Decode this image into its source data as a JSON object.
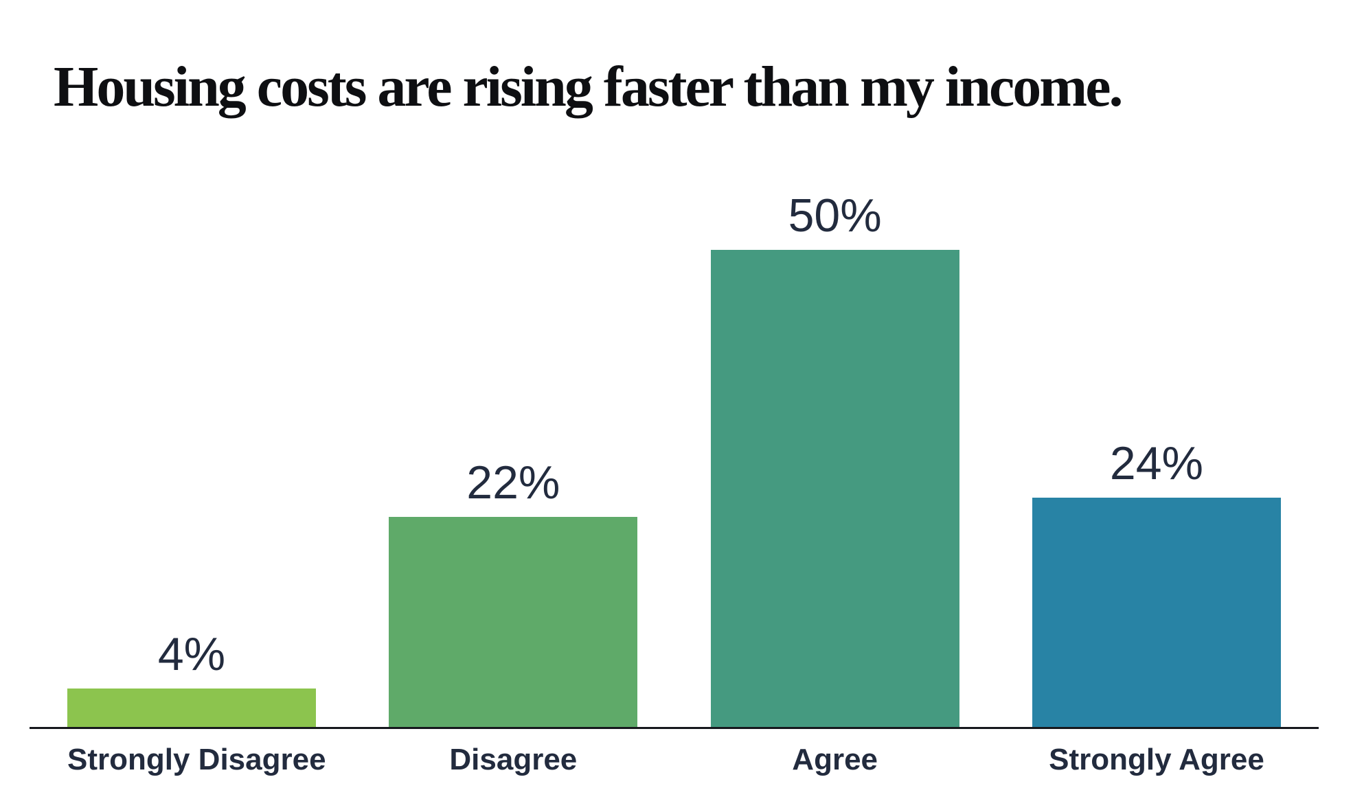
{
  "title": "Housing costs are rising faster than my income.",
  "chart_data": {
    "type": "bar",
    "title": "Housing costs are rising faster than my income.",
    "categories": [
      "Strongly Disagree",
      "Disagree",
      "Agree",
      "Strongly Agree"
    ],
    "values": [
      4,
      22,
      50,
      24
    ],
    "value_labels": [
      "4%",
      "22%",
      "50%",
      "24%"
    ],
    "bar_colors": [
      "#8CC44E",
      "#5FAA69",
      "#459A80",
      "#2883A5"
    ],
    "xlabel": "",
    "ylabel": "",
    "ylim": [
      0,
      52
    ],
    "grid": false,
    "legend": "none",
    "text_color": "#222B3E",
    "title_color": "#0E0F12",
    "axis_line_color": "#16181D",
    "background_color": "#FFFFFF"
  }
}
